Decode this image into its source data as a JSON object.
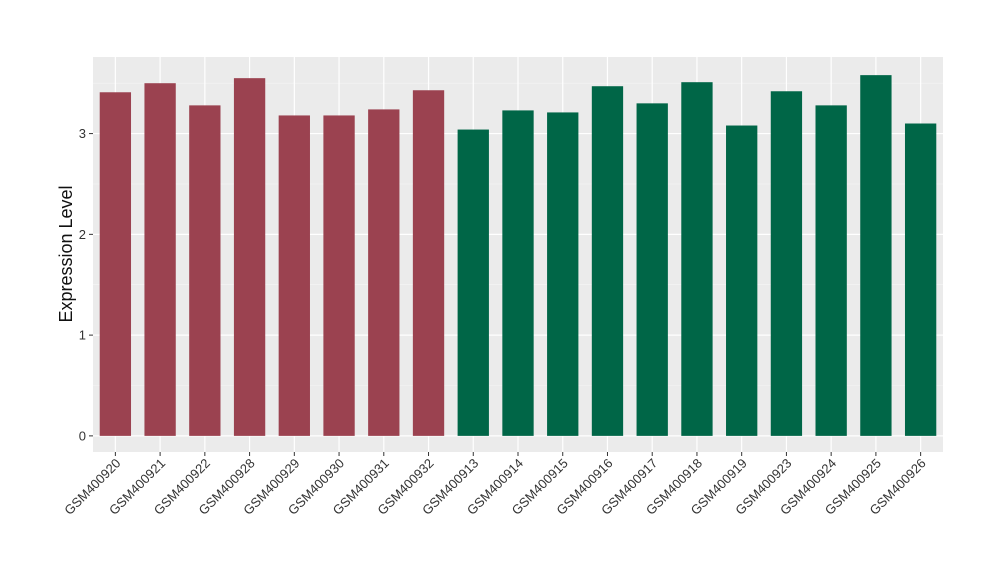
{
  "chart_data": {
    "type": "bar",
    "xlabel": "",
    "ylabel": "Expression Level",
    "ylim": [
      -0.16,
      3.76
    ],
    "yticks": [
      0,
      1,
      2,
      3
    ],
    "grid": true,
    "legend": "none",
    "colors": {
      "panel": "#EBEBEB",
      "grid_major": "#FFFFFF",
      "grid_minor": "#F5F5F5",
      "group_a": "#9B4250",
      "group_b": "#006647"
    },
    "categories": [
      "GSM400920",
      "GSM400921",
      "GSM400922",
      "GSM400928",
      "GSM400929",
      "GSM400930",
      "GSM400931",
      "GSM400932",
      "GSM400913",
      "GSM400914",
      "GSM400915",
      "GSM400916",
      "GSM400917",
      "GSM400918",
      "GSM400919",
      "GSM400923",
      "GSM400924",
      "GSM400925",
      "GSM400926"
    ],
    "values": [
      3.41,
      3.5,
      3.28,
      3.55,
      3.18,
      3.18,
      3.24,
      3.43,
      3.04,
      3.23,
      3.21,
      3.47,
      3.3,
      3.51,
      3.08,
      3.42,
      3.28,
      3.58,
      3.1
    ],
    "bar_colors": [
      "#9B4250",
      "#9B4250",
      "#9B4250",
      "#9B4250",
      "#9B4250",
      "#9B4250",
      "#9B4250",
      "#9B4250",
      "#006647",
      "#006647",
      "#006647",
      "#006647",
      "#006647",
      "#006647",
      "#006647",
      "#006647",
      "#006647",
      "#006647",
      "#006647"
    ]
  }
}
